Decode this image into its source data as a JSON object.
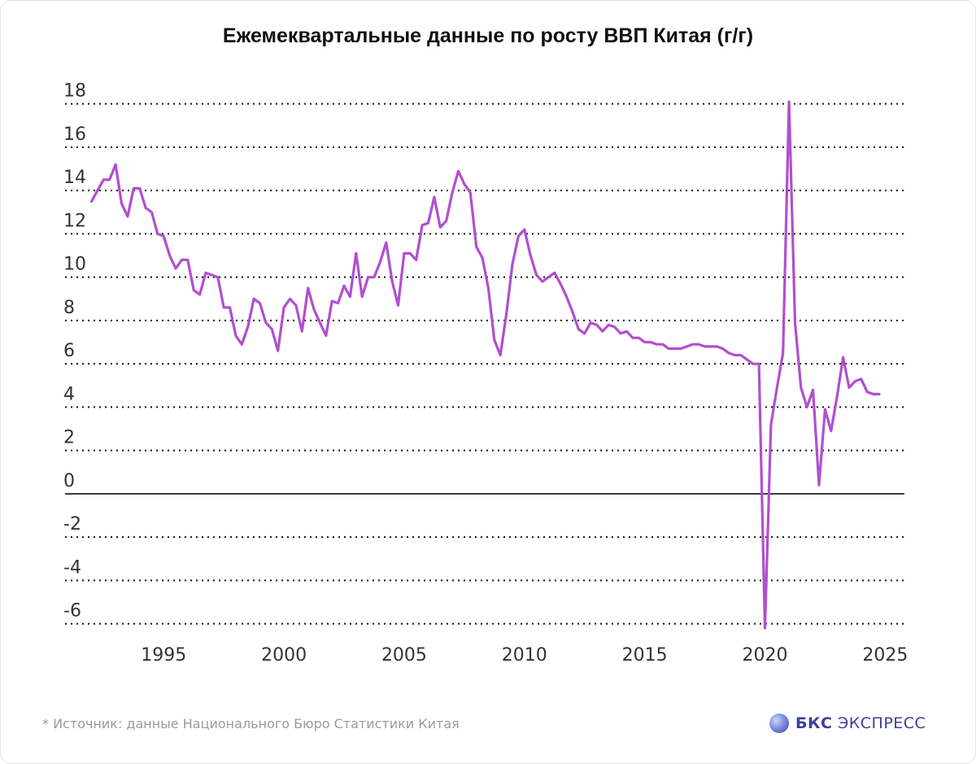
{
  "footer": {
    "source_note": "* Источник: данные Национального Бюро Статистики Китая",
    "brand_bold": "БКС",
    "brand_rest": " ЭКСПРЕСС"
  },
  "colors": {
    "series": "#b14fd0",
    "grid": "#111111",
    "axis_text": "#333333"
  },
  "chart_data": {
    "type": "line",
    "title": "Ежемеквартальные данные по росту ВВП Китая (г/г)",
    "xlabel": "",
    "ylabel": "",
    "xlim": [
      1990.9,
      2025.8
    ],
    "ylim": [
      -6.2,
      18.1
    ],
    "x_ticks": [
      1995,
      2000,
      2005,
      2010,
      2015,
      2020,
      2025
    ],
    "y_ticks": [
      18,
      16,
      14,
      12,
      10,
      8,
      6,
      4,
      2,
      0,
      -2,
      -4,
      -6
    ],
    "grid": "dotted horizontal",
    "legend": "none",
    "series": [
      {
        "name": "",
        "x": [
          1992.0,
          1992.25,
          1992.5,
          1992.75,
          1993.0,
          1993.25,
          1993.5,
          1993.75,
          1994.0,
          1994.25,
          1994.5,
          1994.75,
          1995.0,
          1995.25,
          1995.5,
          1995.75,
          1996.0,
          1996.25,
          1996.5,
          1996.75,
          1997.0,
          1997.25,
          1997.5,
          1997.75,
          1998.0,
          1998.25,
          1998.5,
          1998.75,
          1999.0,
          1999.25,
          1999.5,
          1999.75,
          2000.0,
          2000.25,
          2000.5,
          2000.75,
          2001.0,
          2001.25,
          2001.5,
          2001.75,
          2002.0,
          2002.25,
          2002.5,
          2002.75,
          2003.0,
          2003.25,
          2003.5,
          2003.75,
          2004.0,
          2004.25,
          2004.5,
          2004.75,
          2005.0,
          2005.25,
          2005.5,
          2005.75,
          2006.0,
          2006.25,
          2006.5,
          2006.75,
          2007.0,
          2007.25,
          2007.5,
          2007.75,
          2008.0,
          2008.25,
          2008.5,
          2008.75,
          2009.0,
          2009.25,
          2009.5,
          2009.75,
          2010.0,
          2010.25,
          2010.5,
          2010.75,
          2011.0,
          2011.25,
          2011.5,
          2011.75,
          2012.0,
          2012.25,
          2012.5,
          2012.75,
          2013.0,
          2013.25,
          2013.5,
          2013.75,
          2014.0,
          2014.25,
          2014.5,
          2014.75,
          2015.0,
          2015.25,
          2015.5,
          2015.75,
          2016.0,
          2016.25,
          2016.5,
          2016.75,
          2017.0,
          2017.25,
          2017.5,
          2017.75,
          2018.0,
          2018.25,
          2018.5,
          2018.75,
          2019.0,
          2019.25,
          2019.5,
          2019.75,
          2020.0,
          2020.25,
          2020.5,
          2020.75,
          2021.0,
          2021.25,
          2021.5,
          2021.75,
          2022.0,
          2022.25,
          2022.5,
          2022.75,
          2023.0,
          2023.25,
          2023.5,
          2023.75,
          2024.0,
          2024.25,
          2024.5,
          2024.75
        ],
        "values": [
          13.5,
          14.0,
          14.5,
          14.5,
          15.2,
          13.4,
          12.8,
          14.1,
          14.1,
          13.2,
          13.0,
          12.0,
          11.9,
          11.0,
          10.4,
          10.8,
          10.8,
          9.4,
          9.2,
          10.2,
          10.1,
          10.0,
          8.6,
          8.6,
          7.3,
          6.9,
          7.7,
          9.0,
          8.8,
          7.9,
          7.6,
          6.6,
          8.6,
          9.0,
          8.7,
          7.5,
          9.5,
          8.5,
          7.9,
          7.3,
          8.9,
          8.8,
          9.6,
          9.1,
          11.1,
          9.1,
          10.0,
          10.0,
          10.7,
          11.6,
          9.8,
          8.7,
          11.1,
          11.1,
          10.8,
          12.4,
          12.5,
          13.7,
          12.3,
          12.6,
          13.9,
          14.9,
          14.3,
          13.9,
          11.4,
          10.9,
          9.5,
          7.1,
          6.4,
          8.3,
          10.6,
          11.9,
          12.2,
          11.0,
          10.1,
          9.8,
          10.0,
          10.2,
          9.7,
          9.1,
          8.4,
          7.6,
          7.4,
          7.9,
          7.8,
          7.5,
          7.8,
          7.7,
          7.4,
          7.5,
          7.2,
          7.2,
          7.0,
          7.0,
          6.9,
          6.9,
          6.7,
          6.7,
          6.7,
          6.8,
          6.9,
          6.9,
          6.8,
          6.8,
          6.8,
          6.7,
          6.5,
          6.4,
          6.4,
          6.2,
          6.0,
          6.0,
          -6.8,
          3.2,
          4.9,
          6.5,
          18.3,
          7.9,
          4.9,
          4.0,
          4.8,
          0.4,
          3.9,
          2.9,
          4.5,
          6.3,
          4.9,
          5.2,
          5.3,
          4.7,
          4.6,
          4.6
        ]
      }
    ]
  }
}
